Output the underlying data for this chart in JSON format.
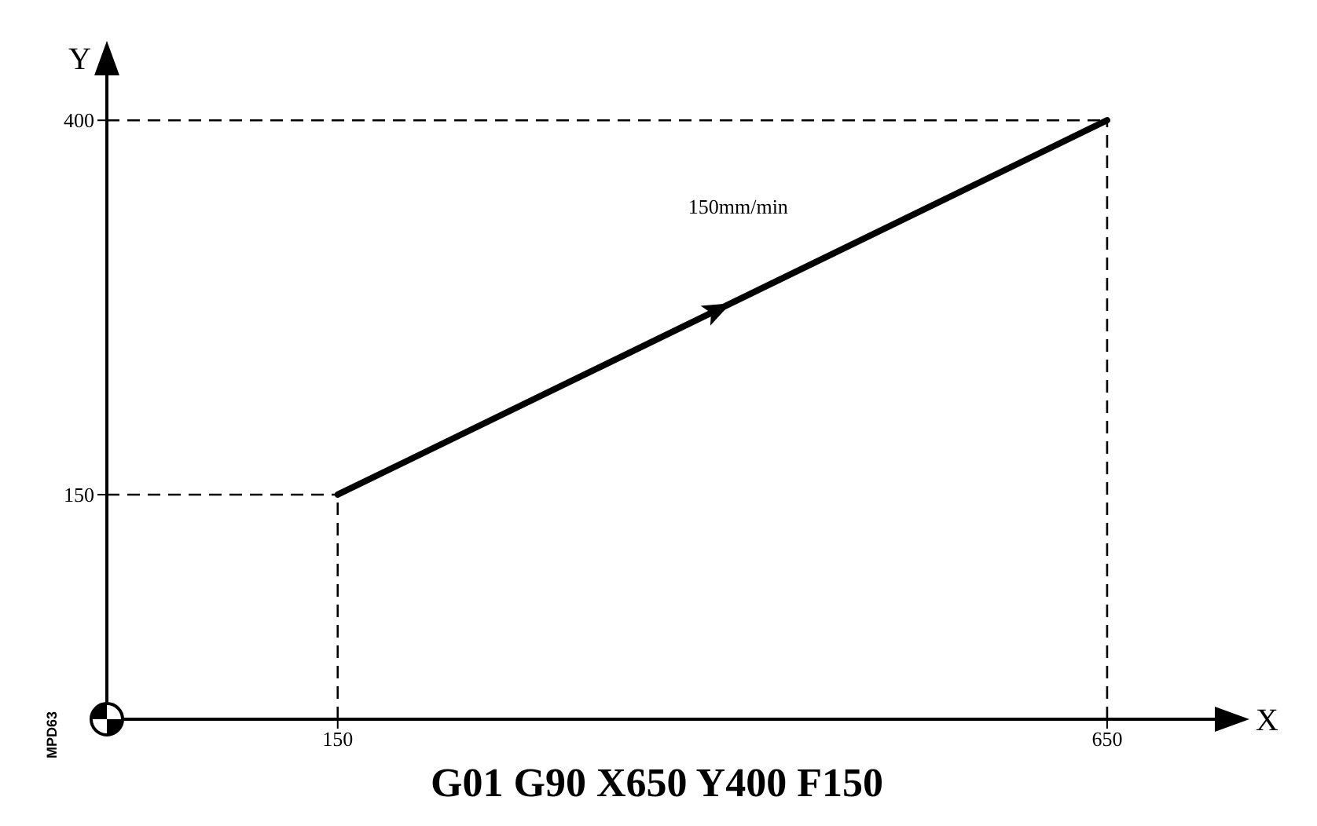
{
  "chart_data": {
    "type": "line",
    "title": "G01 G90 X650 Y400 F150",
    "xlabel": "X",
    "ylabel": "Y",
    "xlim": [
      0,
      720
    ],
    "ylim": [
      0,
      430
    ],
    "xticks": [
      150,
      650
    ],
    "yticks": [
      150,
      400
    ],
    "series": [
      {
        "x": [
          150,
          650
        ],
        "values": [
          150,
          400
        ],
        "color": "#000000"
      }
    ],
    "ref_lines": [
      {
        "axis": "x",
        "value": 150,
        "line_style": "dashed"
      },
      {
        "axis": "x",
        "value": 650,
        "line_style": "dashed"
      },
      {
        "axis": "y",
        "value": 150,
        "line_style": "dashed"
      },
      {
        "axis": "y",
        "value": 400,
        "line_style": "dashed"
      }
    ],
    "annotations": [
      "150mm/min",
      "MPD63"
    ],
    "marker": "none",
    "line_style": "solid"
  }
}
